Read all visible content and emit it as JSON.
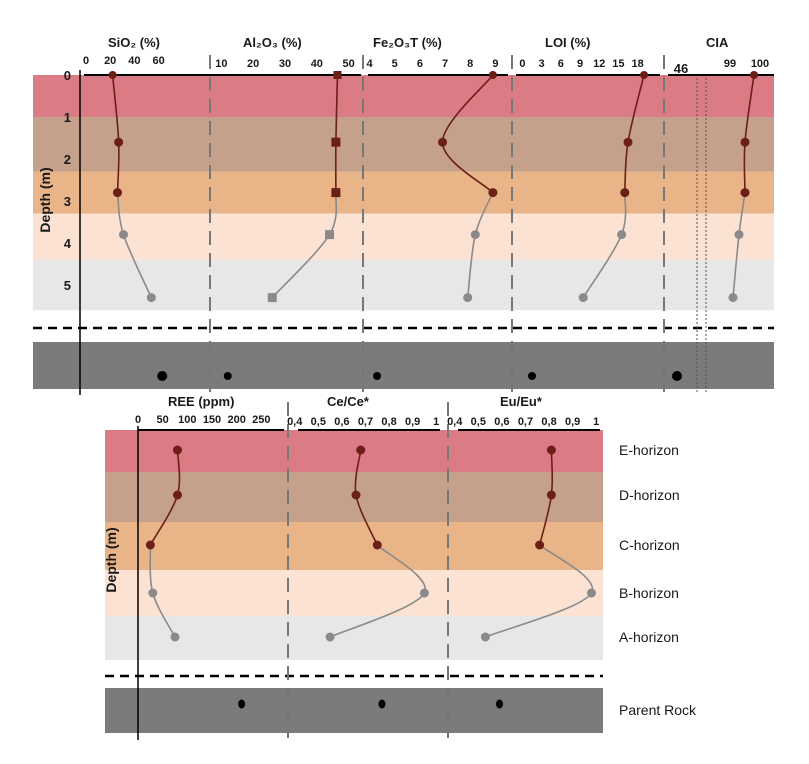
{
  "colors": {
    "E-horizon": "#db7b86",
    "D-horizon": "#c5a08a",
    "C-horizon": "#e9b488",
    "B-horizon": "#fbe2d3",
    "A-horizon": "#e7e7e7",
    "Parent Rock": "#7b7b7b",
    "curve_upper": "#6b1f16",
    "curve_lower": "#8a8a8a"
  },
  "horizon_labels": [
    "E-horizon",
    "D-horizon",
    "C-horizon",
    "B-horizon",
    "A-horizon",
    "Parent Rock"
  ],
  "chart_data": [
    {
      "type": "line",
      "ylabel": "Depth (m)",
      "y_ticks": [
        0,
        1,
        2,
        3,
        4,
        5
      ],
      "depth_bands_m": [
        {
          "name": "E-horizon",
          "from": 0,
          "to": 1
        },
        {
          "name": "D-horizon",
          "from": 1,
          "to": 2.3
        },
        {
          "name": "C-horizon",
          "from": 2.3,
          "to": 3.3
        },
        {
          "name": "B-horizon",
          "from": 3.3,
          "to": 4.4
        },
        {
          "name": "A-horizon",
          "from": 4.4,
          "to": 5.6
        }
      ],
      "panels": [
        {
          "title": "SiO₂ (%)",
          "xlim": [
            0,
            100
          ],
          "x_ticks": [
            0,
            20,
            40,
            60
          ],
          "marker": "circle",
          "points": [
            {
              "depth": 0,
              "value": 22
            },
            {
              "depth": 1.6,
              "value": 27
            },
            {
              "depth": 2.8,
              "value": 26
            },
            {
              "depth": 3.8,
              "value": 31
            },
            {
              "depth": 5.3,
              "value": 54
            }
          ],
          "parent_rock": 63
        },
        {
          "title": "Al₂O₃ (%)",
          "xlim": [
            8,
            52
          ],
          "x_ticks": [
            10,
            20,
            30,
            40,
            50
          ],
          "marker": "square",
          "points": [
            {
              "depth": 0,
              "value": 46.5
            },
            {
              "depth": 1.6,
              "value": 46
            },
            {
              "depth": 2.8,
              "value": 46
            },
            {
              "depth": 3.8,
              "value": 44
            },
            {
              "depth": 5.3,
              "value": 26
            }
          ],
          "parent_rock": 12
        },
        {
          "title": "Fe₂O₃T (%)",
          "xlim": [
            3.9,
            9.5
          ],
          "x_ticks": [
            4,
            5,
            6,
            7,
            8,
            9
          ],
          "marker": "circle",
          "points": [
            {
              "depth": 0,
              "value": 8.9
            },
            {
              "depth": 1.6,
              "value": 6.9
            },
            {
              "depth": 2.8,
              "value": 8.9
            },
            {
              "depth": 3.8,
              "value": 8.2
            },
            {
              "depth": 5.3,
              "value": 7.9
            }
          ],
          "parent_rock": 4.3
        },
        {
          "title": "LOI (%)",
          "xlim": [
            -1,
            21.5
          ],
          "x_ticks": [
            0,
            3,
            6,
            9,
            12,
            15,
            18
          ],
          "marker": "circle",
          "points": [
            {
              "depth": 0,
              "value": 19
            },
            {
              "depth": 1.6,
              "value": 16.5
            },
            {
              "depth": 2.8,
              "value": 16
            },
            {
              "depth": 3.8,
              "value": 15.5
            },
            {
              "depth": 5.3,
              "value": 9.5
            }
          ],
          "parent_rock": 1.5
        },
        {
          "title": "CIA",
          "x_ticks": [
            46,
            99,
            100
          ],
          "marker": "circle",
          "points": [
            {
              "depth": 0,
              "value": 99.8
            },
            {
              "depth": 1.6,
              "value": 99.5
            },
            {
              "depth": 2.8,
              "value": 99.5
            },
            {
              "depth": 3.8,
              "value": 99.3
            },
            {
              "depth": 5.3,
              "value": 99.1
            }
          ],
          "parent_rock": 46
        }
      ]
    },
    {
      "type": "line",
      "ylabel": "Depth (m)",
      "panels": [
        {
          "title": "REE (ppm)",
          "xlim": [
            0,
            300
          ],
          "x_ticks": [
            0,
            50,
            100,
            150,
            200,
            250
          ],
          "marker": "circle",
          "points": [
            {
              "horizon": "E-horizon",
              "value": 80
            },
            {
              "horizon": "D-horizon",
              "value": 80
            },
            {
              "horizon": "C-horizon",
              "value": 25
            },
            {
              "horizon": "B-horizon",
              "value": 30
            },
            {
              "horizon": "A-horizon",
              "value": 75
            }
          ],
          "parent_rock": 210
        },
        {
          "title": "Ce/Ce*",
          "xlim": [
            0.38,
            1.05
          ],
          "x_ticks": [
            0.4,
            0.5,
            0.6,
            0.7,
            0.8,
            0.9,
            1
          ],
          "marker": "circle",
          "points": [
            {
              "horizon": "E-horizon",
              "value": 0.68
            },
            {
              "horizon": "D-horizon",
              "value": 0.66
            },
            {
              "horizon": "C-horizon",
              "value": 0.75
            },
            {
              "horizon": "B-horizon",
              "value": 0.95
            },
            {
              "horizon": "A-horizon",
              "value": 0.55
            }
          ],
          "parent_rock": 0.77
        },
        {
          "title": "Eu/Eu*",
          "xlim": [
            0.38,
            1.05
          ],
          "x_ticks": [
            0.4,
            0.5,
            0.6,
            0.7,
            0.8,
            0.9,
            1
          ],
          "marker": "circle",
          "points": [
            {
              "horizon": "E-horizon",
              "value": 0.81
            },
            {
              "horizon": "D-horizon",
              "value": 0.81
            },
            {
              "horizon": "C-horizon",
              "value": 0.76
            },
            {
              "horizon": "B-horizon",
              "value": 0.98
            },
            {
              "horizon": "A-horizon",
              "value": 0.53
            }
          ],
          "parent_rock": 0.59
        }
      ]
    }
  ]
}
